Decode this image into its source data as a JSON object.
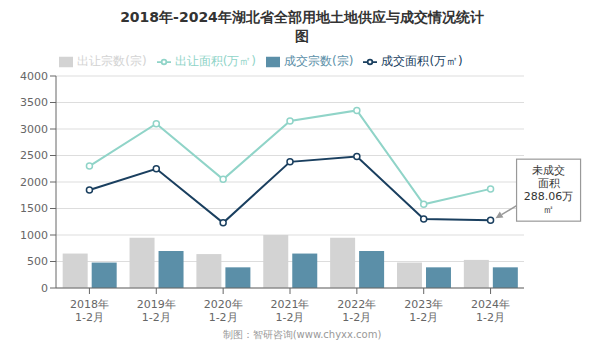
{
  "chart_data": {
    "type": "bar",
    "title": "2018年-2024年湖北省全部用地土地供应与成交情况统计\n图",
    "categories": [
      "2018年\n1-2月",
      "2019年\n1-2月",
      "2020年\n1-2月",
      "2021年\n1-2月",
      "2022年\n1-2月",
      "2023年\n1-2月",
      "2024年\n1-2月"
    ],
    "series": [
      {
        "name": "出让宗数(宗)",
        "type": "bar",
        "color": "#d3d3d3",
        "values": [
          650,
          950,
          640,
          1000,
          950,
          480,
          530
        ]
      },
      {
        "name": "成交宗数(宗)",
        "type": "bar",
        "color": "#5b8fa8",
        "values": [
          480,
          700,
          390,
          650,
          700,
          390,
          390
        ]
      },
      {
        "name": "出让面积(万㎡)",
        "type": "line",
        "color": "#90d4c8",
        "marker": "circle",
        "values": [
          2300,
          3100,
          2050,
          3150,
          3350,
          1580,
          1870
        ]
      },
      {
        "name": "成交面积(万㎡)",
        "type": "line",
        "color": "#1a3f5f",
        "marker": "circle",
        "values": [
          1850,
          2250,
          1230,
          2380,
          2480,
          1300,
          1280
        ]
      }
    ],
    "ylim": [
      0,
      4000
    ],
    "yticks": [
      0,
      500,
      1000,
      1500,
      2000,
      2500,
      3000,
      3500,
      4000
    ],
    "grid": true,
    "legend": "top",
    "annotations": [
      "未成交\n面积\n288.06万\n㎡",
      "制图：智研咨询(www.chyxx.com)"
    ]
  }
}
